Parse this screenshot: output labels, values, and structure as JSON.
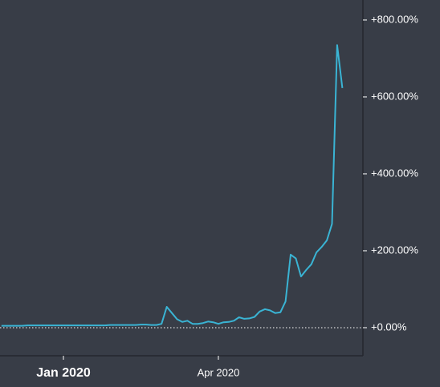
{
  "chart_data": {
    "type": "line",
    "categories": [
      null,
      null,
      null,
      null,
      null,
      null,
      null,
      null,
      null,
      null,
      null,
      null,
      "Jan 2020",
      null,
      null,
      null,
      null,
      null,
      null,
      null,
      null,
      null,
      null,
      null,
      null,
      null,
      null,
      null,
      null,
      null,
      null,
      null,
      null,
      null,
      null,
      null,
      null,
      null,
      null,
      null,
      null,
      null,
      "Apr 2020",
      null,
      null,
      null,
      null,
      null,
      null,
      null,
      null,
      null,
      null,
      null,
      null,
      null,
      null,
      null,
      null,
      null,
      null,
      null,
      null,
      null,
      null,
      null,
      null
    ],
    "values": [
      5,
      5,
      5,
      5,
      5,
      6,
      6,
      6,
      6,
      6,
      6,
      6,
      6,
      6,
      6,
      6,
      6,
      6,
      6,
      6,
      6,
      7,
      7,
      7,
      7,
      7,
      7,
      8,
      8,
      7,
      7,
      10,
      54,
      38,
      22,
      15,
      18,
      10,
      10,
      12,
      16,
      14,
      10,
      14,
      15,
      18,
      27,
      23,
      24,
      28,
      42,
      48,
      45,
      38,
      40,
      68,
      190,
      180,
      133,
      150,
      165,
      196,
      210,
      227,
      270,
      735,
      623
    ],
    "color": "#3ab4d4",
    "ylim": [
      -73,
      852
    ],
    "yticks": [
      {
        "value": 0,
        "label": "+0.00%"
      },
      {
        "value": 200,
        "label": "+200.00%"
      },
      {
        "value": 400,
        "label": "+400.00%"
      },
      {
        "value": 600,
        "label": "+600.00%"
      },
      {
        "value": 800,
        "label": "+800.00%"
      }
    ]
  }
}
